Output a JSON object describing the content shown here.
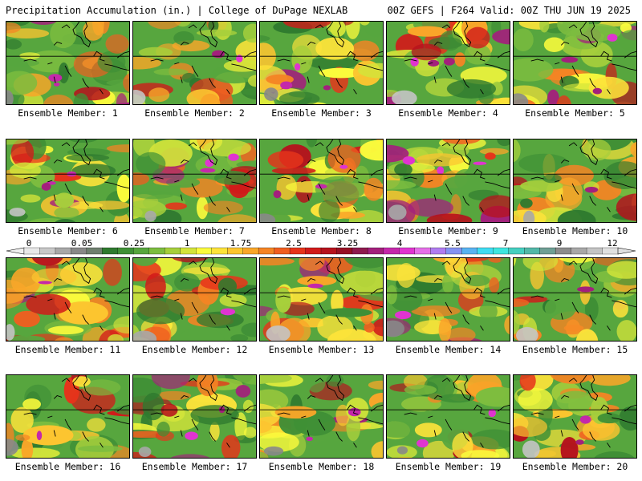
{
  "header": {
    "left_title": "Precipitation Accumulation (in.) | College of DuPage NEXLAB",
    "right_title": "00Z GEFS | F264 Valid: 00Z THU JUN 19 2025"
  },
  "colorbar": {
    "tick_labels": [
      "0",
      "0.05",
      "0.25",
      "1",
      "1.75",
      "2.5",
      "3.25",
      "4",
      "5.5",
      "7",
      "9",
      "12"
    ],
    "colors": [
      "#e8e8e8",
      "#c8c8c8",
      "#a8a8a8",
      "#888888",
      "#6f7f6f",
      "#2f7a2f",
      "#3f8f36",
      "#57a63e",
      "#7cbd3f",
      "#a6cf3c",
      "#d3e43a",
      "#fbfb3c",
      "#fde33a",
      "#fcc530",
      "#f9a629",
      "#f58424",
      "#f05e20",
      "#e6341b",
      "#d11a1a",
      "#b5121d",
      "#961024",
      "#8e1a4e",
      "#a3207c",
      "#c428aa",
      "#e034d0",
      "#e56fe8",
      "#b07cf0",
      "#8492f2",
      "#59b3f2",
      "#3fdcf2",
      "#3ee6e0",
      "#45cfc0",
      "#52b8a8",
      "#6f9f95",
      "#8c8c8c",
      "#a8a8a8",
      "#c4c4c4",
      "#e0e0e0"
    ]
  },
  "members": [
    {
      "label": "Ensemble Member: 1"
    },
    {
      "label": "Ensemble Member: 2"
    },
    {
      "label": "Ensemble Member: 3"
    },
    {
      "label": "Ensemble Member: 4"
    },
    {
      "label": "Ensemble Member: 5"
    },
    {
      "label": "Ensemble Member: 6"
    },
    {
      "label": "Ensemble Member: 7"
    },
    {
      "label": "Ensemble Member: 8"
    },
    {
      "label": "Ensemble Member: 9"
    },
    {
      "label": "Ensemble Member: 10"
    },
    {
      "label": "Ensemble Member: 11"
    },
    {
      "label": "Ensemble Member: 12"
    },
    {
      "label": "Ensemble Member: 13"
    },
    {
      "label": "Ensemble Member: 14"
    },
    {
      "label": "Ensemble Member: 15"
    },
    {
      "label": "Ensemble Member: 16"
    },
    {
      "label": "Ensemble Member: 17"
    },
    {
      "label": "Ensemble Member: 18"
    },
    {
      "label": "Ensemble Member: 19"
    },
    {
      "label": "Ensemble Member: 20"
    }
  ]
}
